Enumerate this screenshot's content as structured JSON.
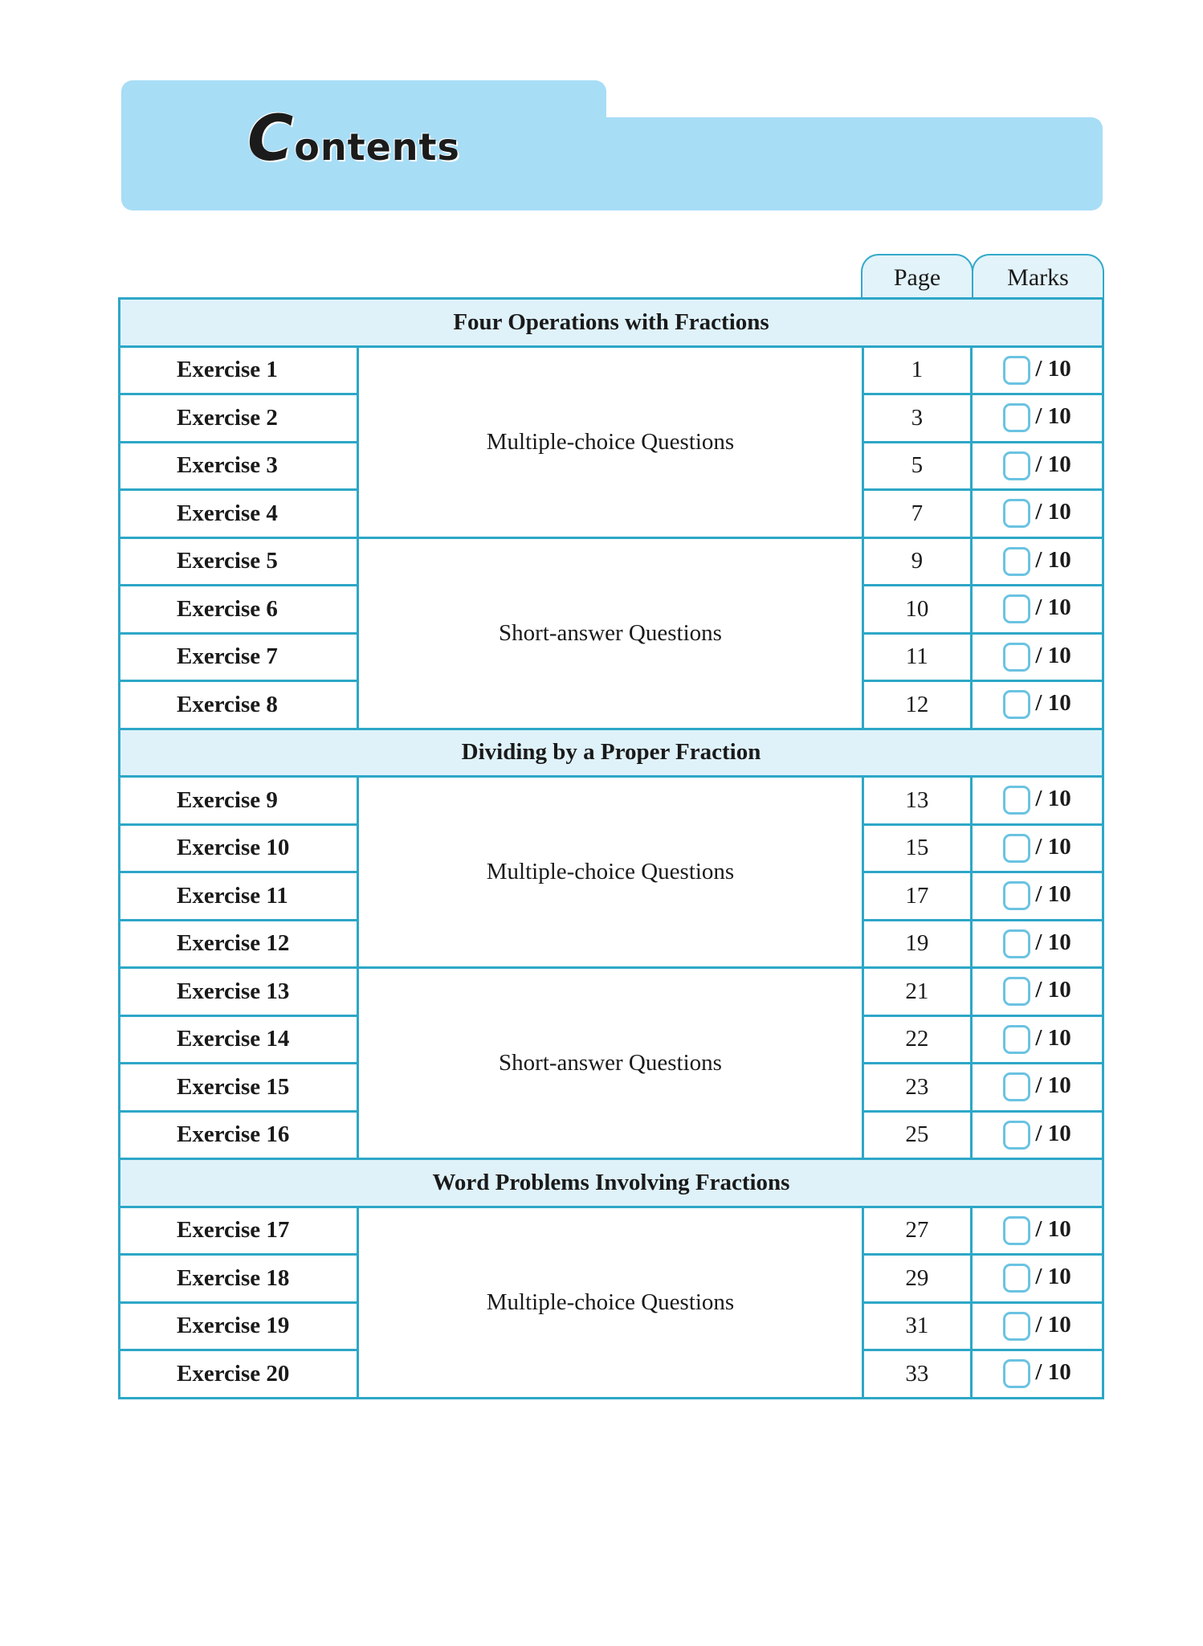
{
  "title": {
    "first_letter": "C",
    "rest": "ontents"
  },
  "columns": {
    "page": "Page",
    "marks": "Marks"
  },
  "colors": {
    "banner": "#a8ddf6",
    "border": "#2da7c7",
    "section_bg": "#dff2fa",
    "checkbox": "#6bc3e2"
  },
  "sections": [
    {
      "title": "Four Operations with Fractions",
      "groups": [
        {
          "type": "Multiple-choice Questions",
          "rows": [
            {
              "label": "Exercise 1",
              "page": "1",
              "marks": "/ 10"
            },
            {
              "label": "Exercise 2",
              "page": "3",
              "marks": "/ 10"
            },
            {
              "label": "Exercise 3",
              "page": "5",
              "marks": "/ 10"
            },
            {
              "label": "Exercise 4",
              "page": "7",
              "marks": "/ 10"
            }
          ]
        },
        {
          "type": "Short-answer Questions",
          "rows": [
            {
              "label": "Exercise 5",
              "page": "9",
              "marks": "/ 10"
            },
            {
              "label": "Exercise 6",
              "page": "10",
              "marks": "/ 10"
            },
            {
              "label": "Exercise 7",
              "page": "11",
              "marks": "/ 10"
            },
            {
              "label": "Exercise 8",
              "page": "12",
              "marks": "/ 10"
            }
          ]
        }
      ]
    },
    {
      "title": "Dividing by a Proper Fraction",
      "groups": [
        {
          "type": "Multiple-choice Questions",
          "rows": [
            {
              "label": "Exercise 9",
              "page": "13",
              "marks": "/ 10"
            },
            {
              "label": "Exercise 10",
              "page": "15",
              "marks": "/ 10"
            },
            {
              "label": "Exercise 11",
              "page": "17",
              "marks": "/ 10"
            },
            {
              "label": "Exercise 12",
              "page": "19",
              "marks": "/ 10"
            }
          ]
        },
        {
          "type": "Short-answer Questions",
          "rows": [
            {
              "label": "Exercise 13",
              "page": "21",
              "marks": "/ 10"
            },
            {
              "label": "Exercise 14",
              "page": "22",
              "marks": "/ 10"
            },
            {
              "label": "Exercise 15",
              "page": "23",
              "marks": "/ 10"
            },
            {
              "label": "Exercise 16",
              "page": "25",
              "marks": "/ 10"
            }
          ]
        }
      ]
    },
    {
      "title": "Word Problems Involving Fractions",
      "groups": [
        {
          "type": "Multiple-choice Questions",
          "rows": [
            {
              "label": "Exercise 17",
              "page": "27",
              "marks": "/ 10"
            },
            {
              "label": "Exercise 18",
              "page": "29",
              "marks": "/ 10"
            },
            {
              "label": "Exercise 19",
              "page": "31",
              "marks": "/ 10"
            },
            {
              "label": "Exercise 20",
              "page": "33",
              "marks": "/ 10"
            }
          ]
        }
      ]
    }
  ]
}
